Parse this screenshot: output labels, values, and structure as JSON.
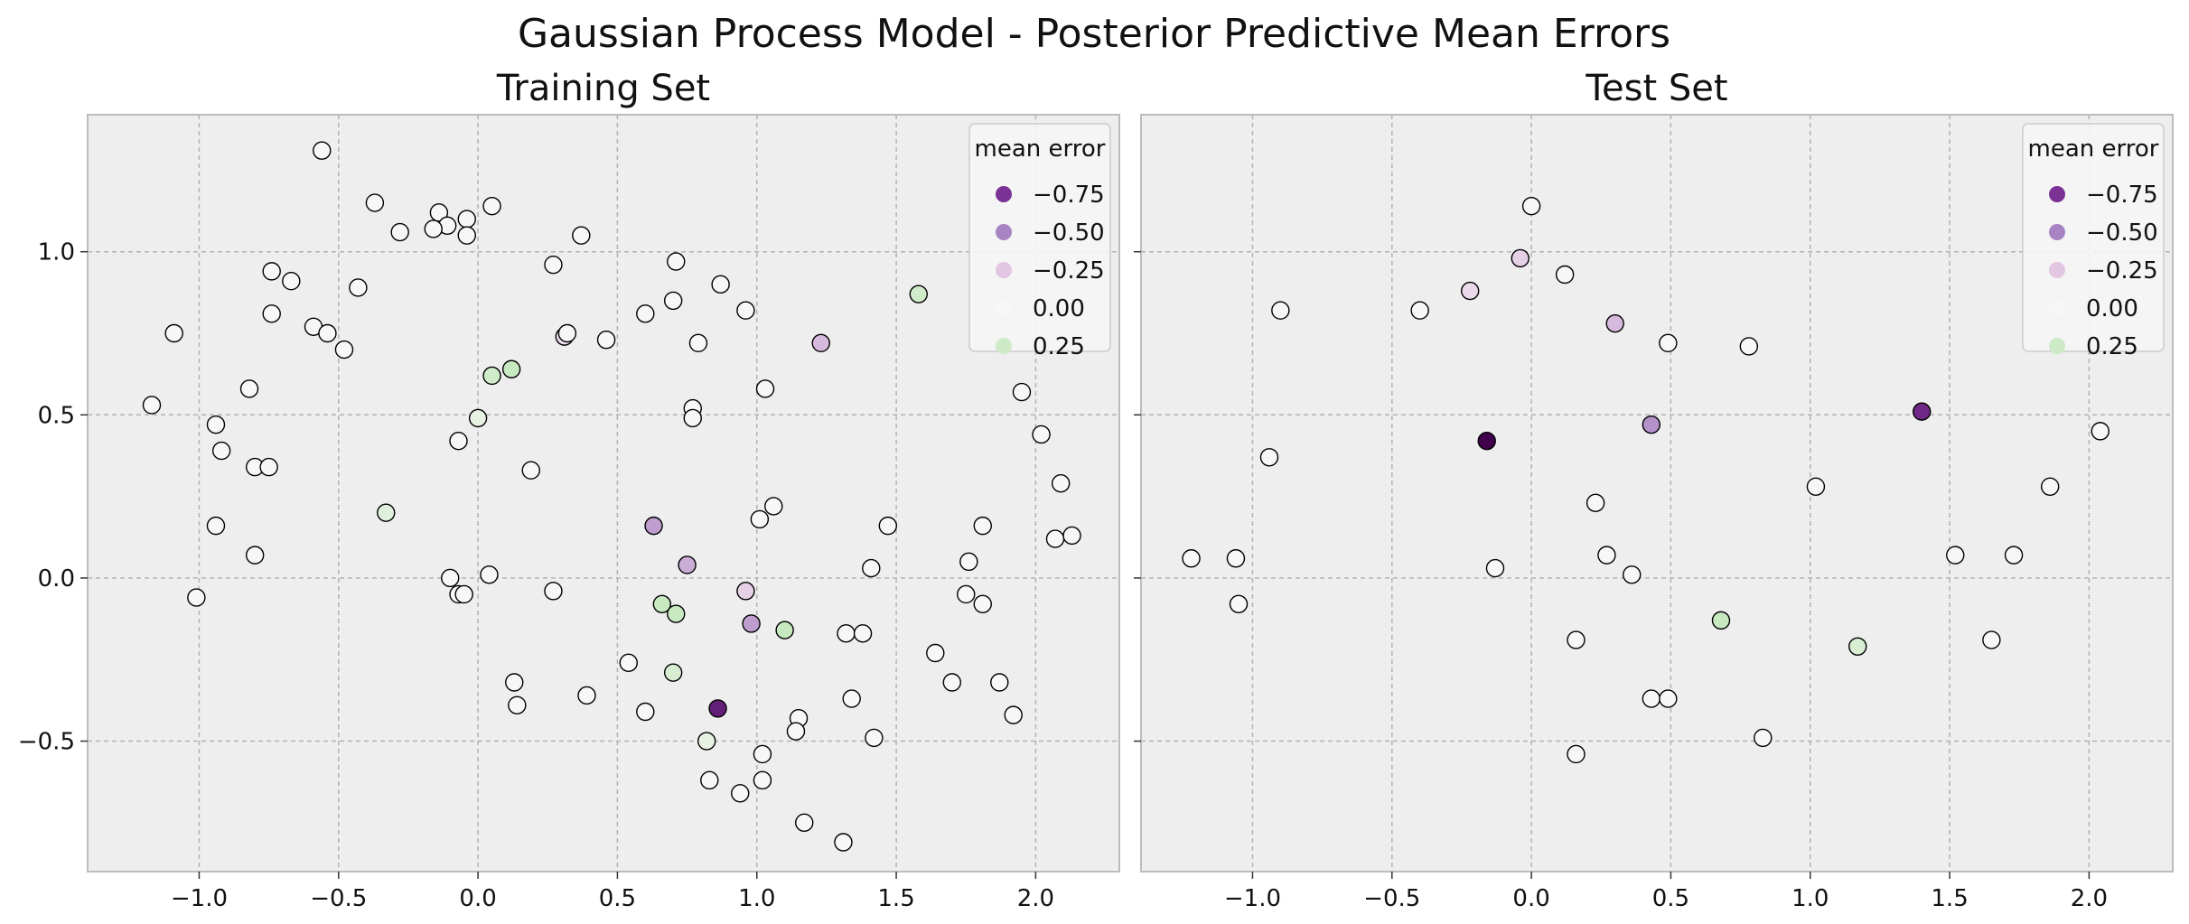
{
  "title": "Gaussian Process Model - Posterior Predictive Mean Errors",
  "legend": {
    "title": "mean error",
    "entries": [
      {
        "value": -0.75,
        "label": "−0.75",
        "color": "#7b3294"
      },
      {
        "value": -0.5,
        "label": "−0.50",
        "color": "#a884c3"
      },
      {
        "value": -0.25,
        "label": "−0.25",
        "color": "#e2c6e2"
      },
      {
        "value": 0.0,
        "label": "0.00",
        "color": "#f7f7f7"
      },
      {
        "value": 0.25,
        "label": "0.25",
        "color": "#cdeac7"
      }
    ]
  },
  "chart_data": [
    {
      "type": "scatter",
      "title": "Training Set",
      "xlabel": "",
      "ylabel": "",
      "xlim": [
        -1.4,
        2.3
      ],
      "ylim": [
        -0.9,
        1.42
      ],
      "xticks": [
        -1.0,
        -0.5,
        0.0,
        0.5,
        1.0,
        1.5,
        2.0
      ],
      "xtick_labels": [
        "−1.0",
        "−0.5",
        "0.0",
        "0.5",
        "1.0",
        "1.5",
        "2.0"
      ],
      "yticks": [
        -0.5,
        0.0,
        0.5,
        1.0
      ],
      "ytick_labels": [
        "−0.5",
        "0.0",
        "0.5",
        "1.0"
      ],
      "grid": true,
      "legend_position": "top-right",
      "points": [
        {
          "x": -0.56,
          "y": 1.31,
          "e": 0
        },
        {
          "x": -0.37,
          "y": 1.15,
          "e": 0
        },
        {
          "x": -0.28,
          "y": 1.06,
          "e": 0
        },
        {
          "x": -0.14,
          "y": 1.12,
          "e": 0
        },
        {
          "x": -0.11,
          "y": 1.08,
          "e": 0
        },
        {
          "x": -0.16,
          "y": 1.07,
          "e": 0
        },
        {
          "x": -0.04,
          "y": 1.1,
          "e": 0
        },
        {
          "x": -0.04,
          "y": 1.05,
          "e": 0
        },
        {
          "x": 0.05,
          "y": 1.14,
          "e": 0
        },
        {
          "x": 0.37,
          "y": 1.05,
          "e": 0
        },
        {
          "x": -0.74,
          "y": 0.94,
          "e": 0
        },
        {
          "x": -0.67,
          "y": 0.91,
          "e": 0
        },
        {
          "x": -0.43,
          "y": 0.89,
          "e": 0
        },
        {
          "x": 0.27,
          "y": 0.96,
          "e": 0
        },
        {
          "x": 0.71,
          "y": 0.97,
          "e": 0
        },
        {
          "x": 0.87,
          "y": 0.9,
          "e": 0
        },
        {
          "x": -0.74,
          "y": 0.81,
          "e": 0
        },
        {
          "x": 0.7,
          "y": 0.85,
          "e": 0
        },
        {
          "x": 0.96,
          "y": 0.82,
          "e": 0
        },
        {
          "x": 0.6,
          "y": 0.81,
          "e": 0
        },
        {
          "x": -1.09,
          "y": 0.75,
          "e": 0
        },
        {
          "x": -0.59,
          "y": 0.77,
          "e": 0
        },
        {
          "x": -0.54,
          "y": 0.75,
          "e": 0
        },
        {
          "x": -0.48,
          "y": 0.7,
          "e": 0
        },
        {
          "x": 0.31,
          "y": 0.74,
          "e": -0.15
        },
        {
          "x": 0.32,
          "y": 0.75,
          "e": 0
        },
        {
          "x": 0.46,
          "y": 0.73,
          "e": 0
        },
        {
          "x": 0.79,
          "y": 0.72,
          "e": 0
        },
        {
          "x": 1.23,
          "y": 0.72,
          "e": -0.3
        },
        {
          "x": 1.58,
          "y": 0.87,
          "e": 0.25
        },
        {
          "x": 0.05,
          "y": 0.62,
          "e": 0.25
        },
        {
          "x": 0.12,
          "y": 0.64,
          "e": 0.3
        },
        {
          "x": -1.17,
          "y": 0.53,
          "e": 0
        },
        {
          "x": -0.82,
          "y": 0.58,
          "e": 0
        },
        {
          "x": -0.94,
          "y": 0.47,
          "e": 0
        },
        {
          "x": 0.0,
          "y": 0.49,
          "e": 0.1
        },
        {
          "x": 0.77,
          "y": 0.52,
          "e": 0
        },
        {
          "x": 0.77,
          "y": 0.49,
          "e": 0
        },
        {
          "x": 1.03,
          "y": 0.58,
          "e": 0
        },
        {
          "x": 1.95,
          "y": 0.57,
          "e": 0
        },
        {
          "x": -0.92,
          "y": 0.39,
          "e": 0
        },
        {
          "x": -0.8,
          "y": 0.34,
          "e": 0
        },
        {
          "x": -0.75,
          "y": 0.34,
          "e": 0
        },
        {
          "x": -0.07,
          "y": 0.42,
          "e": 0
        },
        {
          "x": 0.19,
          "y": 0.33,
          "e": 0
        },
        {
          "x": 2.02,
          "y": 0.44,
          "e": 0
        },
        {
          "x": 2.09,
          "y": 0.29,
          "e": 0
        },
        {
          "x": -0.33,
          "y": 0.2,
          "e": 0.15
        },
        {
          "x": 1.06,
          "y": 0.22,
          "e": 0
        },
        {
          "x": 1.01,
          "y": 0.18,
          "e": 0
        },
        {
          "x": 1.47,
          "y": 0.16,
          "e": 0
        },
        {
          "x": 1.81,
          "y": 0.16,
          "e": 0
        },
        {
          "x": 0.63,
          "y": 0.16,
          "e": -0.4
        },
        {
          "x": -0.94,
          "y": 0.16,
          "e": 0
        },
        {
          "x": -0.8,
          "y": 0.07,
          "e": 0
        },
        {
          "x": 2.07,
          "y": 0.12,
          "e": 0
        },
        {
          "x": 2.13,
          "y": 0.13,
          "e": 0
        },
        {
          "x": 0.75,
          "y": 0.04,
          "e": -0.35
        },
        {
          "x": 1.41,
          "y": 0.03,
          "e": 0
        },
        {
          "x": 1.76,
          "y": 0.05,
          "e": 0
        },
        {
          "x": -0.1,
          "y": 0.0,
          "e": 0
        },
        {
          "x": 0.04,
          "y": 0.01,
          "e": 0
        },
        {
          "x": -1.01,
          "y": -0.06,
          "e": 0
        },
        {
          "x": -0.07,
          "y": -0.05,
          "e": 0
        },
        {
          "x": -0.05,
          "y": -0.05,
          "e": 0
        },
        {
          "x": 0.27,
          "y": -0.04,
          "e": 0
        },
        {
          "x": 0.96,
          "y": -0.04,
          "e": -0.2
        },
        {
          "x": 1.75,
          "y": -0.05,
          "e": 0
        },
        {
          "x": 1.81,
          "y": -0.08,
          "e": 0
        },
        {
          "x": 0.66,
          "y": -0.08,
          "e": 0.3
        },
        {
          "x": 0.71,
          "y": -0.11,
          "e": 0.3
        },
        {
          "x": 0.98,
          "y": -0.14,
          "e": -0.4
        },
        {
          "x": 1.1,
          "y": -0.16,
          "e": 0.3
        },
        {
          "x": 1.32,
          "y": -0.17,
          "e": 0
        },
        {
          "x": 1.38,
          "y": -0.17,
          "e": 0
        },
        {
          "x": 1.64,
          "y": -0.23,
          "e": 0
        },
        {
          "x": 0.54,
          "y": -0.26,
          "e": 0
        },
        {
          "x": 0.7,
          "y": -0.29,
          "e": 0.2
        },
        {
          "x": 0.13,
          "y": -0.32,
          "e": 0
        },
        {
          "x": 1.7,
          "y": -0.32,
          "e": 0
        },
        {
          "x": 1.87,
          "y": -0.32,
          "e": 0
        },
        {
          "x": 0.39,
          "y": -0.36,
          "e": 0
        },
        {
          "x": 1.34,
          "y": -0.37,
          "e": 0
        },
        {
          "x": 0.14,
          "y": -0.39,
          "e": 0
        },
        {
          "x": 0.6,
          "y": -0.41,
          "e": 0
        },
        {
          "x": 0.86,
          "y": -0.4,
          "e": -0.85
        },
        {
          "x": 1.15,
          "y": -0.43,
          "e": 0
        },
        {
          "x": 1.92,
          "y": -0.42,
          "e": 0
        },
        {
          "x": 1.14,
          "y": -0.47,
          "e": 0
        },
        {
          "x": 1.42,
          "y": -0.49,
          "e": 0
        },
        {
          "x": 0.82,
          "y": -0.5,
          "e": 0.1
        },
        {
          "x": 1.02,
          "y": -0.54,
          "e": 0
        },
        {
          "x": 0.83,
          "y": -0.62,
          "e": 0
        },
        {
          "x": 1.02,
          "y": -0.62,
          "e": 0
        },
        {
          "x": 0.94,
          "y": -0.66,
          "e": 0
        },
        {
          "x": 1.17,
          "y": -0.75,
          "e": 0
        },
        {
          "x": 1.31,
          "y": -0.81,
          "e": 0
        }
      ]
    },
    {
      "type": "scatter",
      "title": "Test Set",
      "xlabel": "",
      "ylabel": "",
      "xlim": [
        -1.4,
        2.3
      ],
      "ylim": [
        -0.9,
        1.42
      ],
      "xticks": [
        -1.0,
        -0.5,
        0.0,
        0.5,
        1.0,
        1.5,
        2.0
      ],
      "xtick_labels": [
        "−1.0",
        "−0.5",
        "0.0",
        "0.5",
        "1.0",
        "1.5",
        "2.0"
      ],
      "yticks": [
        -0.5,
        0.0,
        0.5,
        1.0
      ],
      "ytick_labels": [],
      "grid": true,
      "legend_position": "top-right",
      "points": [
        {
          "x": 0.0,
          "y": 1.14,
          "e": 0
        },
        {
          "x": -0.04,
          "y": 0.98,
          "e": -0.2
        },
        {
          "x": 0.12,
          "y": 0.93,
          "e": 0
        },
        {
          "x": -0.22,
          "y": 0.88,
          "e": -0.15
        },
        {
          "x": -0.9,
          "y": 0.82,
          "e": 0
        },
        {
          "x": -0.4,
          "y": 0.82,
          "e": 0
        },
        {
          "x": 0.3,
          "y": 0.78,
          "e": -0.3
        },
        {
          "x": 0.49,
          "y": 0.72,
          "e": 0
        },
        {
          "x": 0.78,
          "y": 0.71,
          "e": 0
        },
        {
          "x": 1.4,
          "y": 0.51,
          "e": -0.8
        },
        {
          "x": 0.43,
          "y": 0.47,
          "e": -0.45
        },
        {
          "x": 2.04,
          "y": 0.45,
          "e": 0
        },
        {
          "x": -0.16,
          "y": 0.42,
          "e": -1.0
        },
        {
          "x": -0.94,
          "y": 0.37,
          "e": 0
        },
        {
          "x": 1.86,
          "y": 0.28,
          "e": 0
        },
        {
          "x": 1.02,
          "y": 0.28,
          "e": 0
        },
        {
          "x": 0.23,
          "y": 0.23,
          "e": 0
        },
        {
          "x": 0.27,
          "y": 0.07,
          "e": 0
        },
        {
          "x": 1.52,
          "y": 0.07,
          "e": 0
        },
        {
          "x": 1.73,
          "y": 0.07,
          "e": 0
        },
        {
          "x": -1.22,
          "y": 0.06,
          "e": 0
        },
        {
          "x": -1.06,
          "y": 0.06,
          "e": 0
        },
        {
          "x": -0.13,
          "y": 0.03,
          "e": 0
        },
        {
          "x": 0.36,
          "y": 0.01,
          "e": 0
        },
        {
          "x": -1.05,
          "y": -0.08,
          "e": 0
        },
        {
          "x": 0.68,
          "y": -0.13,
          "e": 0.3
        },
        {
          "x": 0.16,
          "y": -0.19,
          "e": 0
        },
        {
          "x": 1.65,
          "y": -0.19,
          "e": 0
        },
        {
          "x": 1.17,
          "y": -0.21,
          "e": 0.2
        },
        {
          "x": 0.43,
          "y": -0.37,
          "e": 0
        },
        {
          "x": 0.49,
          "y": -0.37,
          "e": 0
        },
        {
          "x": 0.83,
          "y": -0.49,
          "e": 0
        },
        {
          "x": 0.16,
          "y": -0.54,
          "e": 0
        }
      ]
    }
  ]
}
